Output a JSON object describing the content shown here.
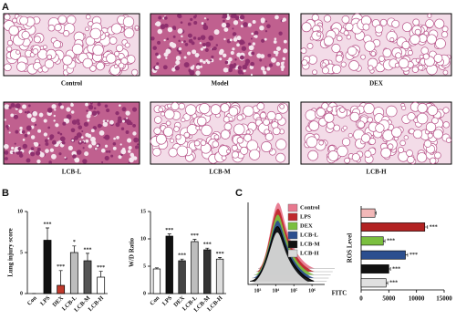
{
  "panel_labels": [
    "A",
    "B",
    "C"
  ],
  "histology": {
    "labels": [
      "Control",
      "Model",
      "DEX",
      "LCB-L",
      "LCB-M",
      "LCB-H"
    ]
  },
  "chart_data": [
    {
      "type": "bar",
      "ylabel": "Lung injury score",
      "categories": [
        "Con",
        "LPS",
        "DEX",
        "LCB-L",
        "LCB-M",
        "LCB-H"
      ],
      "values": [
        0,
        6.5,
        1,
        5,
        4,
        2
      ],
      "errors": [
        0,
        1.5,
        1.8,
        0.8,
        0.9,
        0.7
      ],
      "annotations": [
        null,
        "***",
        "***",
        "*",
        "***",
        "***"
      ],
      "colors": [
        "#ffffff",
        "#111111",
        "#c0392b",
        "#bdbdbd",
        "#555555",
        "#ffffff"
      ],
      "ylim": [
        0,
        10
      ],
      "yticks": [
        0,
        5,
        10
      ]
    },
    {
      "type": "bar",
      "ylabel": "W/D Ratio",
      "categories": [
        "Con",
        "LPS",
        "DEX",
        "LCB-L",
        "LCB-M",
        "LCB-H"
      ],
      "values": [
        4.5,
        10.5,
        6,
        9.5,
        8,
        6.3
      ],
      "errors": [
        0.2,
        0.4,
        0.3,
        0.4,
        0.3,
        0.3
      ],
      "annotations": [
        null,
        "***",
        "***",
        "***",
        "***",
        "***"
      ],
      "colors": [
        "#ffffff",
        "#111111",
        "#444444",
        "#bdbdbd",
        "#333333",
        "#dddddd"
      ],
      "ylim": [
        0,
        15
      ],
      "yticks": [
        0,
        5,
        10,
        15
      ]
    },
    {
      "type": "flow",
      "xlabel": "FITC",
      "log": true,
      "series": [
        {
          "name": "Control",
          "color": "#e8798f"
        },
        {
          "name": "LPS",
          "color": "#c0282d"
        },
        {
          "name": "DEX",
          "color": "#7bbf3f"
        },
        {
          "name": "LCB-L",
          "color": "#2c4f8f"
        },
        {
          "name": "LCB-M",
          "color": "#111111"
        },
        {
          "name": "LCB-H",
          "color": "#d9d9d9"
        }
      ],
      "xlim": [
        300,
        5000000
      ],
      "xticks": [
        {
          "value": 1000,
          "label": "10³"
        },
        {
          "value": 10000,
          "label": "10⁴"
        },
        {
          "value": 100000,
          "label": "10⁵"
        },
        {
          "value": 1000000,
          "label": "10⁶"
        }
      ]
    },
    {
      "type": "hbar",
      "ylabel": "ROS Level",
      "categories": [
        null,
        null,
        null,
        null,
        null,
        null
      ],
      "values": [
        2500,
        11500,
        4000,
        8000,
        5000,
        4500
      ],
      "errors": [
        200,
        500,
        300,
        400,
        300,
        300
      ],
      "annotations": [
        null,
        "***",
        "***",
        "***",
        "***",
        "***"
      ],
      "colors": [
        "#f2b8b8",
        "#b22222",
        "#7bbf3f",
        "#2c4f8f",
        "#111111",
        "#e0e0e0"
      ],
      "xlim": [
        0,
        15000
      ],
      "xticks": [
        0,
        5000,
        10000,
        15000
      ]
    }
  ]
}
